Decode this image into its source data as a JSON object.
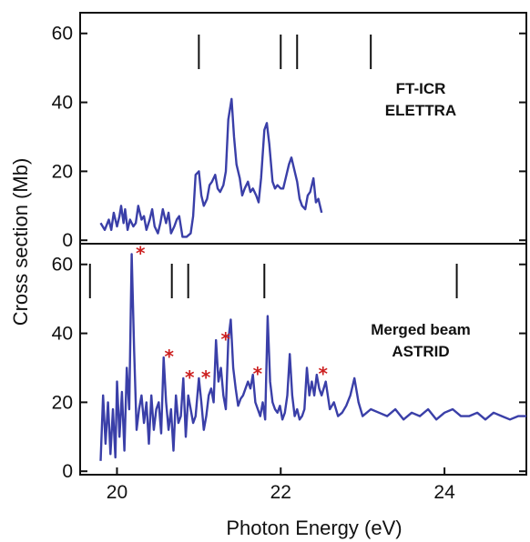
{
  "xlabel": "Photon Energy (eV)",
  "ylabel": "Cross section (Mb)",
  "colors": {
    "series": "#3a3fa8",
    "star": "#cc1f1f",
    "frame": "#111111"
  },
  "chart_data": [
    {
      "type": "line",
      "panel": "top",
      "annotation": [
        "FT-ICR",
        "ELETTRA"
      ],
      "xlim": [
        19.55,
        25.0
      ],
      "ylim": [
        -1,
        66
      ],
      "yticks": [
        0,
        20,
        40,
        60
      ],
      "markers": [
        21.0,
        22.0,
        22.2,
        23.1
      ],
      "series": [
        {
          "x": [
            19.8,
            19.85,
            19.9,
            19.93,
            19.96,
            20.0,
            20.03,
            20.05,
            20.08,
            20.1,
            20.13,
            20.16,
            20.2,
            20.23,
            20.26,
            20.3,
            20.33,
            20.36,
            20.4,
            20.43,
            20.46,
            20.5,
            20.53,
            20.56,
            20.6,
            20.63,
            20.66,
            20.7,
            20.73,
            20.76,
            20.8,
            20.85,
            20.9,
            20.93,
            20.96,
            21.0,
            21.03,
            21.06,
            21.1,
            21.13,
            21.16,
            21.2,
            21.23,
            21.26,
            21.3,
            21.33,
            21.36,
            21.4,
            21.43,
            21.46,
            21.5,
            21.53,
            21.56,
            21.6,
            21.63,
            21.66,
            21.7,
            21.73,
            21.76,
            21.8,
            21.83,
            21.86,
            21.9,
            21.93,
            21.96,
            22.0,
            22.03,
            22.06,
            22.1,
            22.13,
            22.16,
            22.2,
            22.23,
            22.26,
            22.3,
            22.33,
            22.36,
            22.4,
            22.43,
            22.46,
            22.5
          ],
          "y": [
            5,
            3,
            6,
            3,
            8,
            4,
            7,
            10,
            5,
            9,
            3,
            6,
            4,
            5,
            10,
            6,
            7,
            3,
            6,
            9,
            4,
            2,
            5,
            9,
            5,
            8,
            2,
            4,
            6,
            7,
            1,
            1,
            2,
            7,
            19,
            20,
            13,
            10,
            12,
            16,
            17,
            19,
            15,
            14,
            16,
            20,
            35,
            41,
            30,
            22,
            18,
            13,
            15,
            17,
            14,
            15,
            13,
            11,
            18,
            32,
            34,
            28,
            17,
            15,
            16,
            15,
            15,
            18,
            22,
            24,
            21,
            17,
            12,
            10,
            9,
            13,
            14,
            18,
            11,
            12,
            8
          ]
        }
      ]
    },
    {
      "type": "line",
      "panel": "bottom",
      "annotation": [
        "Merged beam",
        "ASTRID"
      ],
      "xlim": [
        19.55,
        25.0
      ],
      "ylim": [
        -1,
        66
      ],
      "yticks": [
        0,
        20,
        40,
        60
      ],
      "xticks": [
        20,
        22,
        24
      ],
      "markers": [
        19.67,
        20.67,
        20.87,
        21.8,
        24.15
      ],
      "stars": [
        20.22,
        20.57,
        20.82,
        21.02,
        21.26,
        21.65,
        22.45
      ],
      "series": [
        {
          "x": [
            19.8,
            19.83,
            19.86,
            19.89,
            19.92,
            19.95,
            19.98,
            20.0,
            20.03,
            20.06,
            20.09,
            20.12,
            20.15,
            20.18,
            20.21,
            20.24,
            20.27,
            20.3,
            20.33,
            20.36,
            20.39,
            20.42,
            20.45,
            20.48,
            20.51,
            20.54,
            20.57,
            20.6,
            20.63,
            20.66,
            20.69,
            20.72,
            20.75,
            20.78,
            20.81,
            20.84,
            20.87,
            20.9,
            20.93,
            20.96,
            21.0,
            21.03,
            21.06,
            21.09,
            21.12,
            21.15,
            21.18,
            21.21,
            21.24,
            21.27,
            21.3,
            21.33,
            21.36,
            21.39,
            21.42,
            21.45,
            21.48,
            21.51,
            21.54,
            21.57,
            21.6,
            21.63,
            21.66,
            21.69,
            21.72,
            21.75,
            21.78,
            21.81,
            21.84,
            21.87,
            21.9,
            21.93,
            21.96,
            21.99,
            22.02,
            22.05,
            22.08,
            22.11,
            22.14,
            22.17,
            22.2,
            22.23,
            22.26,
            22.29,
            22.32,
            22.35,
            22.38,
            22.41,
            22.44,
            22.47,
            22.5,
            22.55,
            22.6,
            22.65,
            22.7,
            22.75,
            22.8,
            22.85,
            22.9,
            22.95,
            23.0,
            23.1,
            23.2,
            23.3,
            23.4,
            23.5,
            23.6,
            23.7,
            23.8,
            23.9,
            24.0,
            24.1,
            24.2,
            24.3,
            24.4,
            24.5,
            24.6,
            24.7,
            24.8,
            24.9,
            25.0
          ],
          "y": [
            3,
            22,
            8,
            20,
            5,
            18,
            4,
            26,
            10,
            23,
            6,
            30,
            18,
            63,
            35,
            12,
            18,
            22,
            14,
            20,
            8,
            22,
            12,
            18,
            20,
            11,
            33,
            20,
            12,
            18,
            6,
            22,
            14,
            16,
            27,
            10,
            22,
            18,
            14,
            16,
            27,
            20,
            12,
            16,
            22,
            24,
            20,
            38,
            26,
            30,
            22,
            18,
            38,
            44,
            30,
            24,
            19,
            21,
            22,
            24,
            26,
            24,
            28,
            20,
            18,
            16,
            20,
            15,
            45,
            26,
            20,
            18,
            17,
            19,
            15,
            17,
            22,
            34,
            22,
            16,
            18,
            15,
            16,
            18,
            30,
            22,
            26,
            22,
            28,
            24,
            22,
            26,
            18,
            20,
            16,
            17,
            19,
            22,
            27,
            20,
            16,
            18,
            17,
            16,
            18,
            15,
            17,
            16,
            18,
            15,
            17,
            18,
            16,
            16,
            17,
            15,
            17,
            16,
            15,
            16,
            16
          ]
        }
      ]
    }
  ]
}
